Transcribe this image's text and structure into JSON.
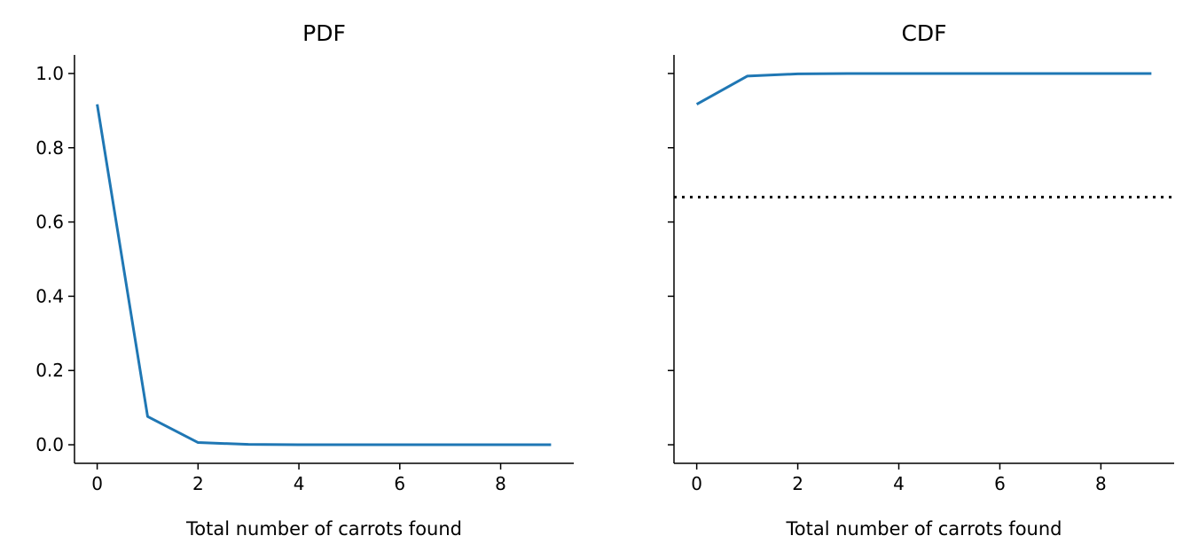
{
  "chart_data": [
    {
      "type": "line",
      "title": "PDF",
      "xlabel": "Total number of carrots found",
      "ylabel": "",
      "xlim": [
        -0.45,
        9.45
      ],
      "ylim": [
        -0.05,
        1.05
      ],
      "xticks": [
        0,
        2,
        4,
        6,
        8
      ],
      "xtick_labels": [
        "0",
        "2",
        "4",
        "6",
        "8"
      ],
      "yticks": [
        0.0,
        0.2,
        0.4,
        0.6,
        0.8,
        1.0
      ],
      "ytick_labels": [
        "0.0",
        "0.2",
        "0.4",
        "0.6",
        "0.8",
        "1.0"
      ],
      "grid": false,
      "series": [
        {
          "color": "#1f77b4",
          "x": [
            0,
            1,
            2,
            3,
            4,
            5,
            6,
            7,
            8,
            9
          ],
          "y": [
            0.917,
            0.076,
            0.006,
            0.001,
            0.0,
            0.0,
            0.0,
            0.0,
            0.0,
            0.0
          ]
        }
      ]
    },
    {
      "type": "line",
      "title": "CDF",
      "xlabel": "Total number of carrots found",
      "ylabel": "",
      "xlim": [
        -0.45,
        9.45
      ],
      "ylim": [
        -0.05,
        1.05
      ],
      "xticks": [
        0,
        2,
        4,
        6,
        8
      ],
      "xtick_labels": [
        "0",
        "2",
        "4",
        "6",
        "8"
      ],
      "yticks": [
        0.0,
        0.2,
        0.4,
        0.6,
        0.8,
        1.0
      ],
      "ytick_labels": [],
      "grid": false,
      "series": [
        {
          "color": "#1f77b4",
          "x": [
            0,
            1,
            2,
            3,
            4,
            5,
            6,
            7,
            8,
            9
          ],
          "y": [
            0.917,
            0.993,
            0.999,
            1.0,
            1.0,
            1.0,
            1.0,
            1.0,
            1.0,
            1.0
          ]
        }
      ],
      "reference_lines": [
        {
          "orientation": "horizontal",
          "y": 0.667,
          "style": "dotted",
          "color": "#000000"
        }
      ]
    }
  ]
}
